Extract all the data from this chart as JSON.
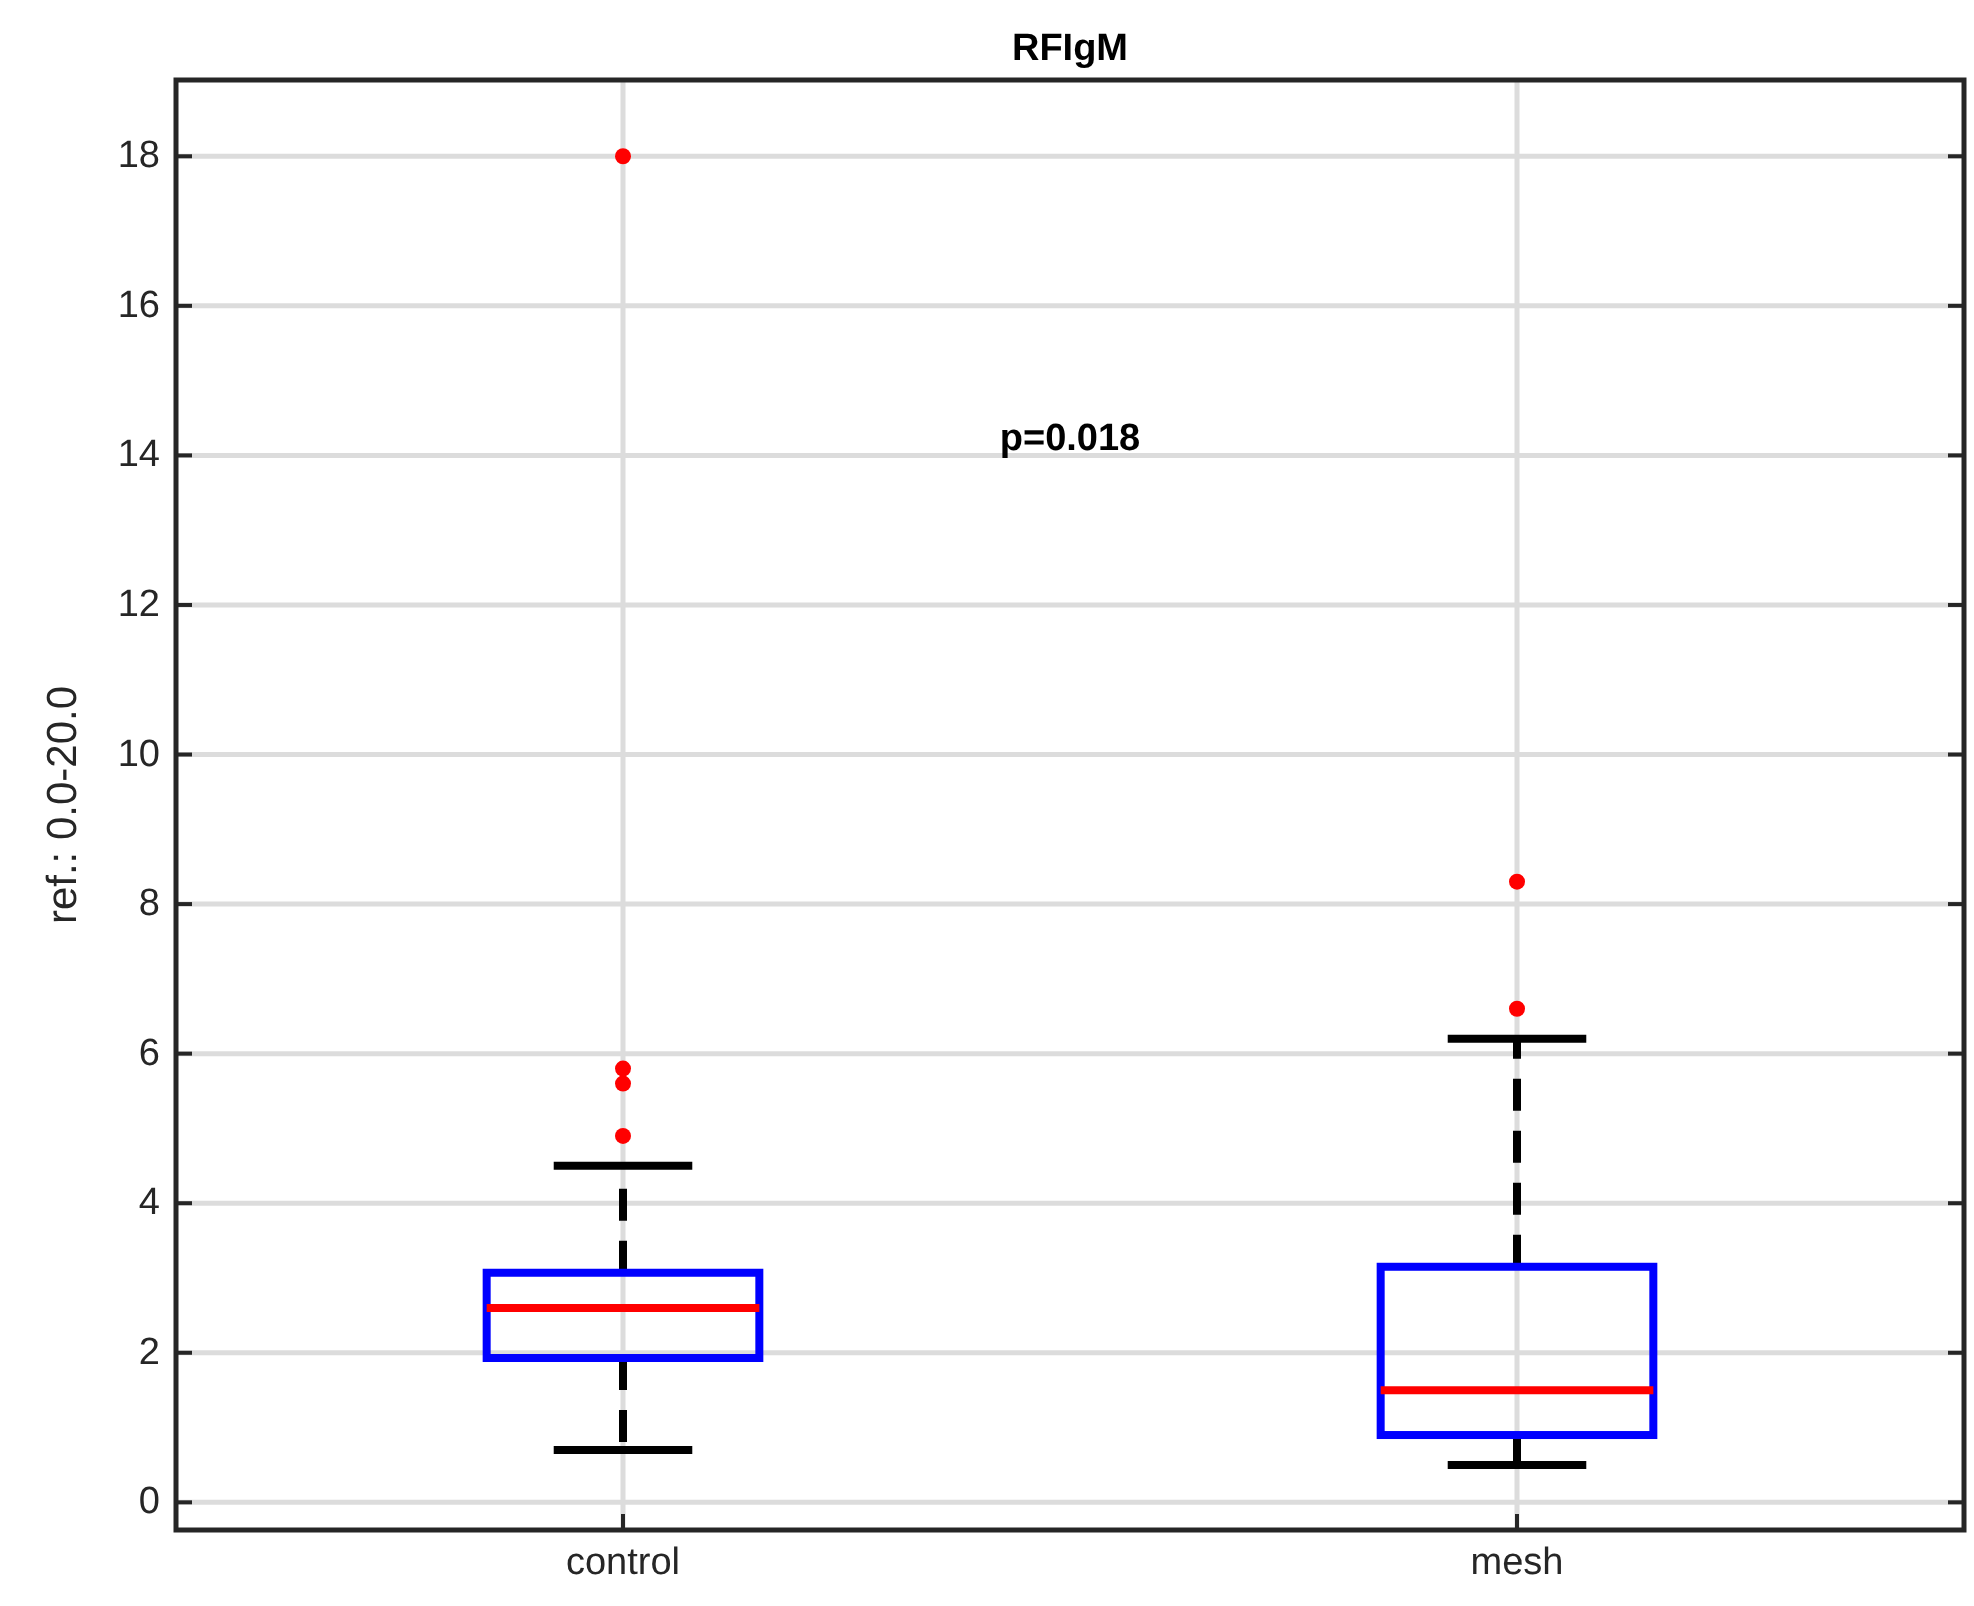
{
  "chart_data": {
    "type": "box",
    "title": "RFIgM",
    "ylabel": "ref.: 0.0-20.0",
    "categories": [
      "control",
      "mesh"
    ],
    "boxes": [
      {
        "low": 0.7,
        "q1": 1.93,
        "median": 2.6,
        "q3": 3.07,
        "high": 4.5,
        "outliers": [
          4.9,
          5.6,
          5.8,
          18
        ]
      },
      {
        "low": 0.5,
        "q1": 0.9,
        "median": 1.5,
        "q3": 3.15,
        "high": 6.2,
        "outliers": [
          6.6,
          8.3
        ]
      }
    ],
    "color": "#0000ff",
    "ylim": [
      -0.37,
      19.02
    ],
    "yticks": [
      0,
      2,
      4,
      6,
      8,
      10,
      12,
      14,
      16,
      18
    ],
    "grid": true,
    "annotations": [
      "p=0.018"
    ]
  }
}
